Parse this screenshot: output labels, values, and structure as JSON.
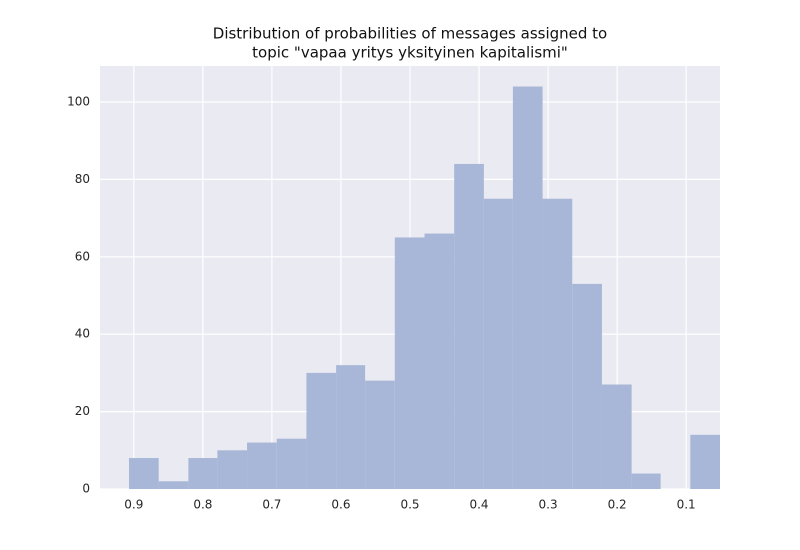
{
  "chart_data": {
    "type": "histogram",
    "title": [
      "Distribution of probabilities of messages assigned to",
      "topic \"vapaa yritys yksityinen kapitalismi\""
    ],
    "bins": [
      0.051,
      0.094,
      0.137,
      0.179,
      0.222,
      0.265,
      0.308,
      0.351,
      0.393,
      0.436,
      0.479,
      0.522,
      0.565,
      0.607,
      0.65,
      0.693,
      0.736,
      0.779,
      0.821,
      0.864,
      0.907
    ],
    "values": [
      14,
      0,
      4,
      27,
      53,
      75,
      104,
      75,
      84,
      66,
      65,
      28,
      32,
      30,
      13,
      12,
      10,
      8,
      2,
      8
    ],
    "color": "#a8b7d7",
    "xlim": [
      0.949,
      0.051
    ],
    "xticks": [
      0.9,
      0.8,
      0.7,
      0.6,
      0.5,
      0.4,
      0.3,
      0.2,
      0.1
    ],
    "ylim": [
      0,
      109.3
    ],
    "yticks": [
      0,
      20,
      40,
      60,
      80,
      100
    ],
    "grid": true
  }
}
